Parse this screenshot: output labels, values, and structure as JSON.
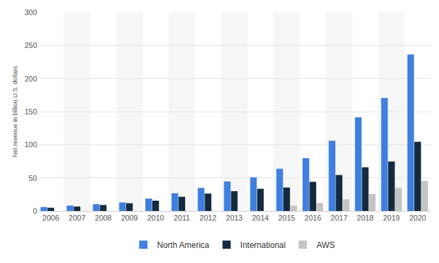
{
  "chart_data": {
    "type": "bar",
    "y_label": "Net revenue in billion U.S. dollars",
    "categories": [
      "2006",
      "2007",
      "2008",
      "2009",
      "2010",
      "2011",
      "2012",
      "2013",
      "2014",
      "2015",
      "2016",
      "2017",
      "2018",
      "2019",
      "2020"
    ],
    "series": [
      {
        "name": "North America",
        "color": "#3f7fe0",
        "values": [
          5.9,
          8.1,
          10.2,
          12.8,
          18.7,
          26.7,
          34.8,
          44.5,
          50.8,
          63.7,
          79.8,
          106.1,
          141.4,
          170.8,
          236.3
        ]
      },
      {
        "name": "International",
        "color": "#142a3e",
        "values": [
          4.8,
          6.7,
          9.0,
          11.7,
          15.5,
          21.4,
          26.3,
          29.9,
          33.5,
          35.4,
          44.0,
          54.3,
          65.9,
          74.7,
          104.4
        ]
      },
      {
        "name": "AWS",
        "color": "#c4c4c4",
        "values": [
          null,
          null,
          null,
          null,
          null,
          null,
          null,
          null,
          null,
          7.9,
          12.2,
          17.5,
          25.7,
          35.0,
          45.4
        ]
      }
    ],
    "ylim": [
      0,
      300
    ],
    "yticks": [
      0,
      50,
      100,
      150,
      200,
      250,
      300
    ],
    "grid": true,
    "legend": "bottom"
  }
}
